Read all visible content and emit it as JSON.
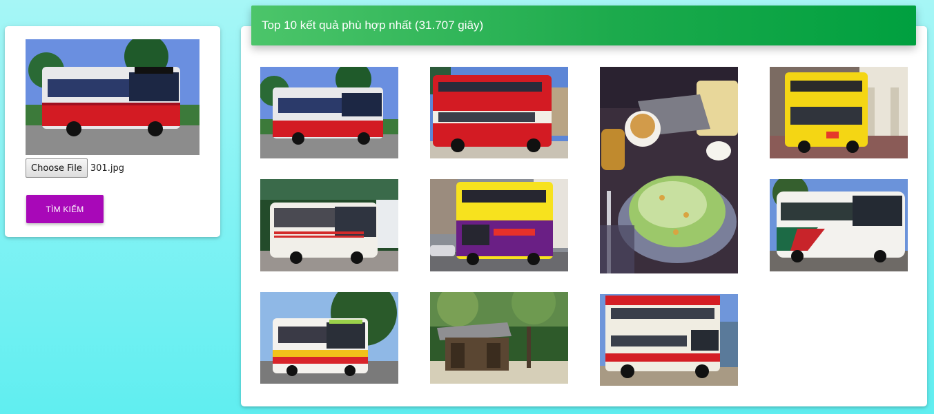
{
  "search_panel": {
    "choose_file_label": "Choose File",
    "file_name": "301.jpg",
    "search_button_label": "TÌM KIẾM"
  },
  "results": {
    "header_text": "Top 10 kết quả phù hợp nhất (31.707 giây)",
    "items": [
      {
        "subject": "red-white-single-deck-bus"
      },
      {
        "subject": "red-white-double-decker-bus"
      },
      {
        "subject": "caesar-salad"
      },
      {
        "subject": "yellow-double-decker-bus"
      },
      {
        "subject": "white-coach-bus"
      },
      {
        "subject": "yellow-purple-double-decker-bus"
      },
      {
        "subject": "white-green-red-coach"
      },
      {
        "subject": "red-yellow-white-single-deck-bus"
      },
      {
        "subject": "wooden-hut-palms"
      },
      {
        "subject": "red-cream-double-decker-bus"
      }
    ]
  },
  "colors": {
    "header_green": "#1caa4c",
    "search_purple": "#a808b8",
    "background_cyan": "#7ff2f4"
  }
}
